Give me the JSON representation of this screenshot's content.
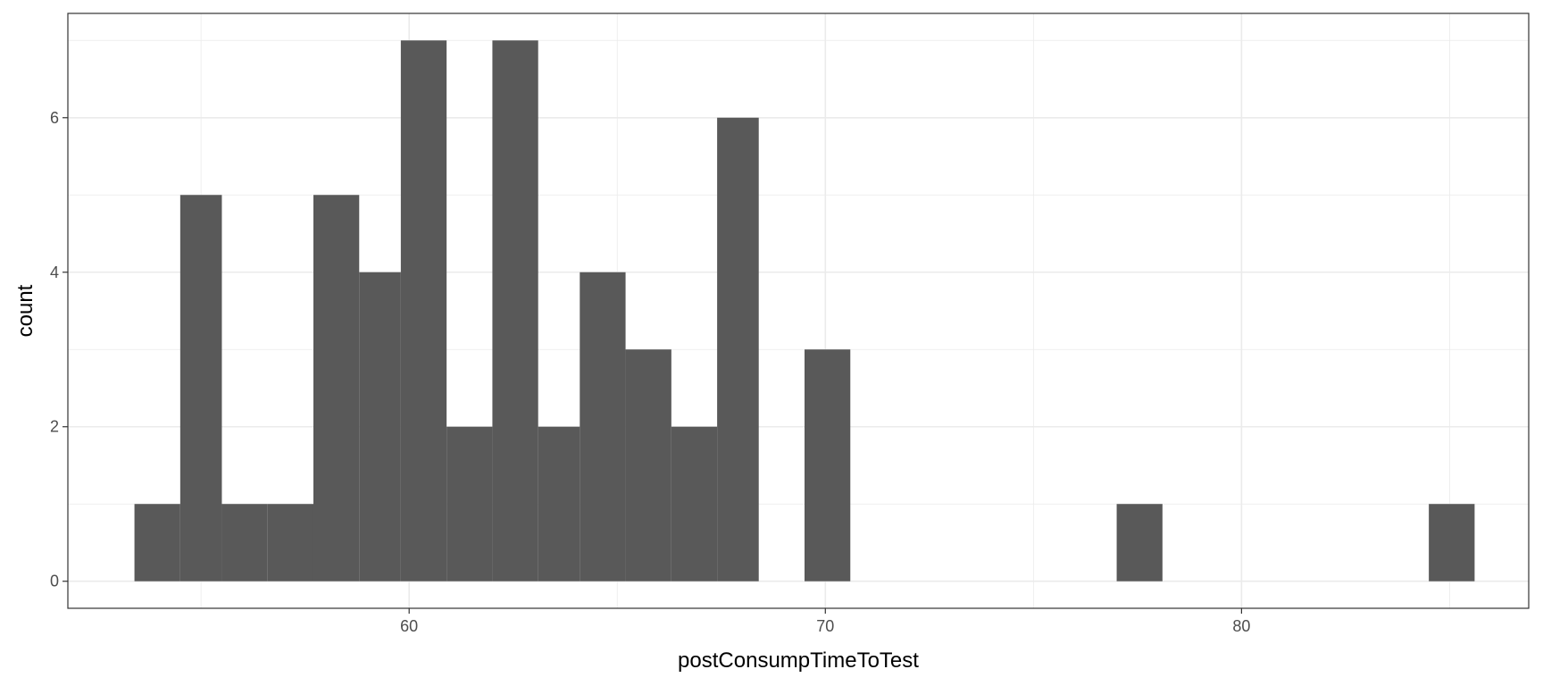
{
  "chart_data": {
    "type": "bar",
    "xlabel": "postConsumpTimeToTest",
    "ylabel": "count",
    "xlim": [
      51.8,
      86.9
    ],
    "ylim": [
      -0.35,
      7.35
    ],
    "x_ticks": [
      60,
      70,
      80
    ],
    "y_ticks": [
      0,
      2,
      4,
      6
    ],
    "grid": true,
    "bins": [
      {
        "x0": 53.4,
        "x1": 54.5,
        "count": 1
      },
      {
        "x0": 54.5,
        "x1": 55.5,
        "count": 5
      },
      {
        "x0": 55.5,
        "x1": 56.6,
        "count": 1
      },
      {
        "x0": 56.6,
        "x1": 57.7,
        "count": 1
      },
      {
        "x0": 57.7,
        "x1": 58.8,
        "count": 5
      },
      {
        "x0": 58.8,
        "x1": 59.8,
        "count": 4
      },
      {
        "x0": 59.8,
        "x1": 60.9,
        "count": 7
      },
      {
        "x0": 60.9,
        "x1": 62.0,
        "count": 2
      },
      {
        "x0": 62.0,
        "x1": 63.1,
        "count": 7
      },
      {
        "x0": 63.1,
        "x1": 64.1,
        "count": 2
      },
      {
        "x0": 64.1,
        "x1": 65.2,
        "count": 4
      },
      {
        "x0": 65.2,
        "x1": 66.3,
        "count": 3
      },
      {
        "x0": 66.3,
        "x1": 67.4,
        "count": 2
      },
      {
        "x0": 67.4,
        "x1": 68.4,
        "count": 6
      },
      {
        "x0": 68.4,
        "x1": 69.5,
        "count": 0
      },
      {
        "x0": 69.5,
        "x1": 70.6,
        "count": 3
      },
      {
        "x0": 70.6,
        "x1": 71.6,
        "count": 0
      },
      {
        "x0": 71.6,
        "x1": 72.7,
        "count": 0
      },
      {
        "x0": 72.7,
        "x1": 73.8,
        "count": 0
      },
      {
        "x0": 73.8,
        "x1": 74.9,
        "count": 0
      },
      {
        "x0": 74.9,
        "x1": 75.9,
        "count": 0
      },
      {
        "x0": 75.9,
        "x1": 77.0,
        "count": 0
      },
      {
        "x0": 77.0,
        "x1": 78.1,
        "count": 1
      },
      {
        "x0": 78.1,
        "x1": 79.2,
        "count": 0
      },
      {
        "x0": 79.2,
        "x1": 80.2,
        "count": 0
      },
      {
        "x0": 80.2,
        "x1": 81.3,
        "count": 0
      },
      {
        "x0": 81.3,
        "x1": 82.4,
        "count": 0
      },
      {
        "x0": 82.4,
        "x1": 83.5,
        "count": 0
      },
      {
        "x0": 83.5,
        "x1": 84.5,
        "count": 0
      },
      {
        "x0": 84.5,
        "x1": 85.6,
        "count": 1
      }
    ],
    "bar_color": "#595959",
    "grid_color": "#ebebeb",
    "panel_border_color": "#333333"
  }
}
